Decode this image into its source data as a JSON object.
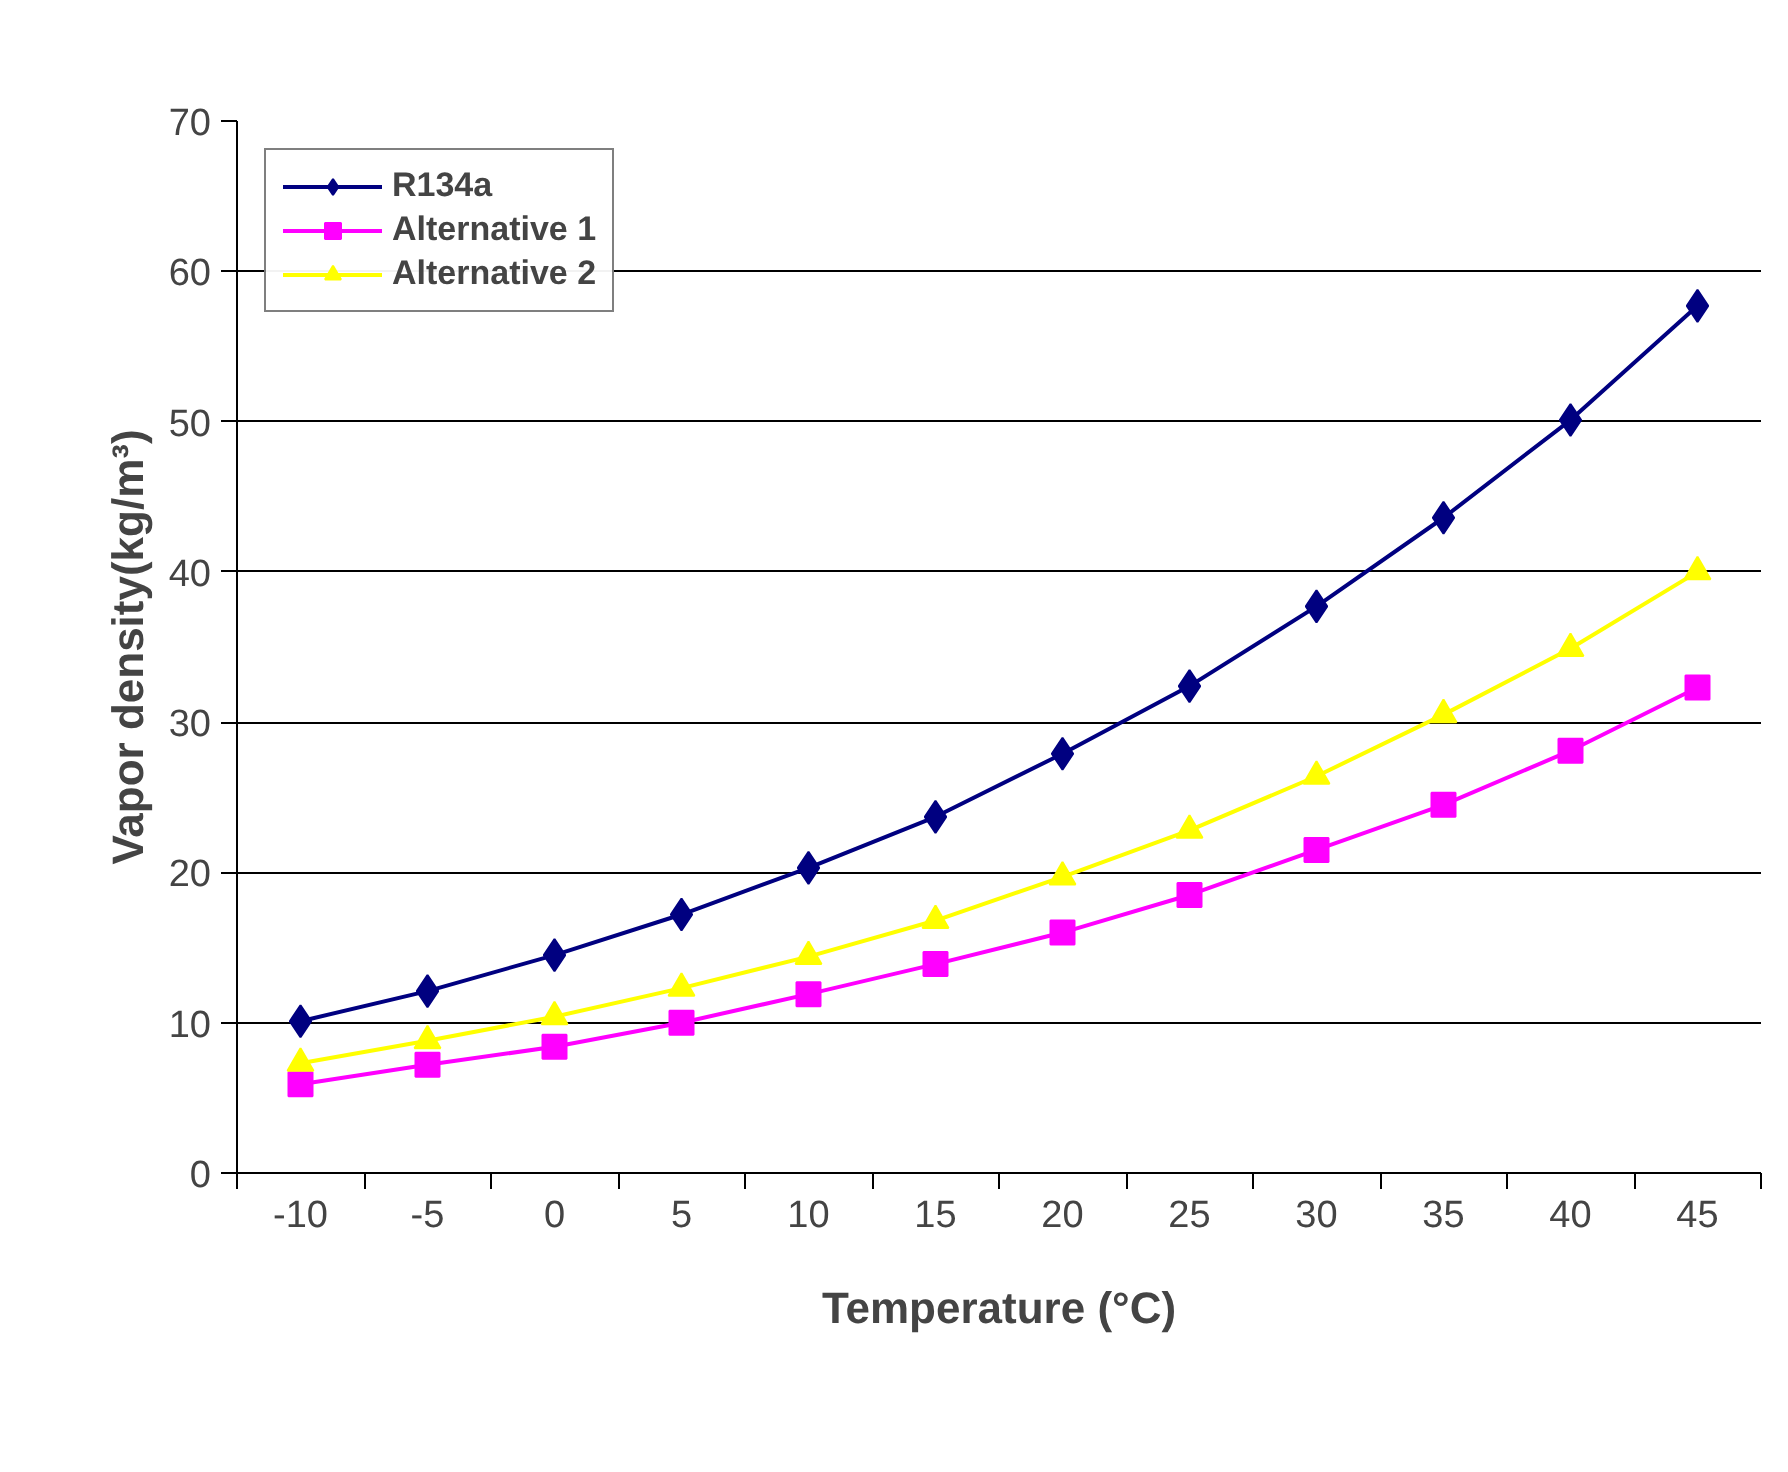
{
  "chart_data": {
    "type": "line",
    "xlabel": "Temperature (°C)",
    "ylabel": "Vapor density(kg/m³)",
    "categories": [
      "-10",
      "-5",
      "0",
      "5",
      "10",
      "15",
      "20",
      "25",
      "30",
      "35",
      "40",
      "45"
    ],
    "ylim": [
      0,
      70
    ],
    "yticks": [
      0,
      10,
      20,
      30,
      40,
      50,
      60,
      70
    ],
    "grid": "y",
    "legend": "top left",
    "series": [
      {
        "name": "R134a",
        "color": "#000080",
        "marker": "diamond",
        "values": [
          10.1,
          12.1,
          14.5,
          17.2,
          20.3,
          23.7,
          27.9,
          32.4,
          37.7,
          43.6,
          50.1,
          57.7
        ]
      },
      {
        "name": "Alternative 1",
        "color": "#ff00ff",
        "marker": "square",
        "values": [
          5.9,
          7.2,
          8.4,
          10.0,
          11.9,
          13.9,
          16.0,
          18.5,
          21.5,
          24.5,
          28.1,
          32.3
        ]
      },
      {
        "name": "Alternative 2",
        "color": "#ffff00",
        "marker": "triangle",
        "values": [
          7.3,
          8.8,
          10.4,
          12.3,
          14.4,
          16.8,
          19.7,
          22.8,
          26.4,
          30.5,
          34.9,
          40.0
        ]
      }
    ]
  }
}
